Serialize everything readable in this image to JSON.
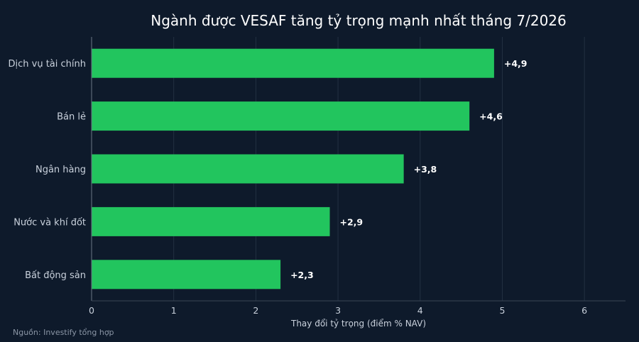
{
  "chart_data": {
    "type": "bar",
    "orientation": "horizontal",
    "title": "Ngành được VESAF tăng tỷ trọng mạnh nhất tháng 7/2026",
    "xlabel": "Thay đổi tỷ trọng (điểm % NAV)",
    "ylabel": "",
    "categories": [
      "Dịch vụ tài chính",
      "Bán lẻ",
      "Ngân hàng",
      "Nước và khí đốt",
      "Bất động sản"
    ],
    "values": [
      4.9,
      4.6,
      3.8,
      2.9,
      2.3
    ],
    "value_labels": [
      "+4,9",
      "+4,6",
      "+3,8",
      "+2,9",
      "+2,3"
    ],
    "xlim": [
      0,
      6.5
    ],
    "xticks": [
      0,
      1,
      2,
      3,
      4,
      5,
      6
    ],
    "grid": true,
    "bar_color": "#22c55e",
    "background_color": "#0e1a2b",
    "source": "Nguồn: Investify tổng hợp"
  }
}
